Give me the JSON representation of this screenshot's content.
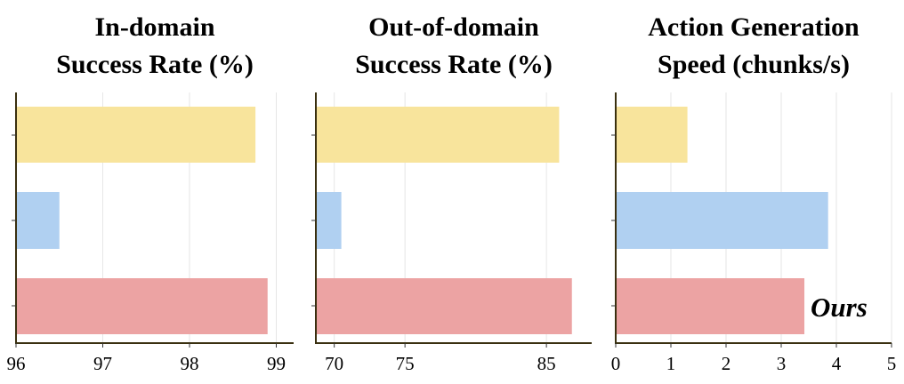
{
  "colors": {
    "bar_yellow": "#f8e49c",
    "bar_blue": "#b0d0f1",
    "bar_red": "#ec a3a3",
    "axis": "#3a3010",
    "grid": "#e6e6e6"
  },
  "chart_data": [
    {
      "type": "bar",
      "orientation": "horizontal",
      "title_line1": "In-domain",
      "title_line2": "Success Rate (%)",
      "xlim": [
        96,
        99.2
      ],
      "xticks": [
        "96",
        "97",
        "98",
        "99"
      ],
      "xtick_values": [
        96,
        97,
        98,
        99
      ],
      "grid": true,
      "values": [
        98.76,
        96.5,
        98.9
      ],
      "bar_label": ""
    },
    {
      "type": "bar",
      "orientation": "horizontal",
      "title_line1": "Out-of-domain",
      "title_line2": "Success Rate (%)",
      "xlim": [
        68.7,
        88.2
      ],
      "xticks": [
        "70",
        "75",
        "85"
      ],
      "xtick_values": [
        70,
        75,
        85
      ],
      "grid": true,
      "values": [
        85.9,
        70.5,
        86.8
      ],
      "bar_label": ""
    },
    {
      "type": "bar",
      "orientation": "horizontal",
      "title_line1": "Action Generation",
      "title_line2": "Speed (chunks/s)",
      "xlim": [
        0,
        5
      ],
      "xticks": [
        "0",
        "1",
        "2",
        "3",
        "4",
        "5"
      ],
      "xtick_values": [
        0,
        1,
        2,
        3,
        4,
        5
      ],
      "grid": true,
      "values": [
        1.3,
        3.85,
        3.42
      ],
      "bar_label": "Ours"
    }
  ]
}
